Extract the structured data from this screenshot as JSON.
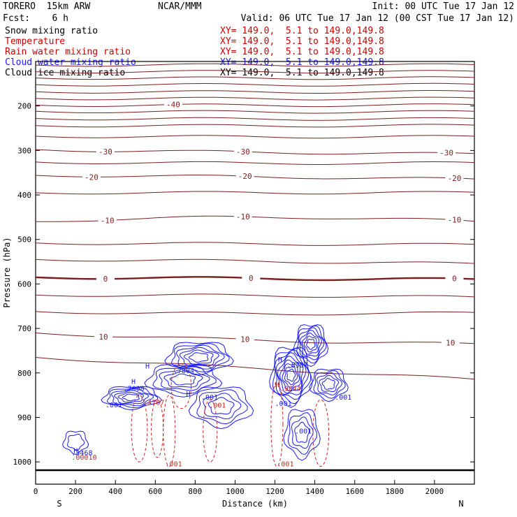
{
  "header": {
    "model": "TORERO  15km ARW",
    "center": "NCAR/MMM",
    "init": "Init: 00 UTC Tue 17 Jan 12",
    "fcst": "Fcst:    6 h",
    "valid": "Valid: 06 UTC Tue 17 Jan 12 (00 CST Tue 17 Jan 12)"
  },
  "fields": [
    {
      "label": "Snow mixing ratio",
      "xy": "XY= 149.0,  5.1 to 149.0,149.8",
      "color": "#000000",
      "xy_color": "#cc0000"
    },
    {
      "label": "Temperature",
      "xy": "XY= 149.0,  5.1 to 149.0,149.8",
      "color": "#cc0000",
      "xy_color": "#cc0000"
    },
    {
      "label": "Rain water mixing ratio",
      "xy": "XY= 149.0,  5.1 to 149.0,149.8",
      "color": "#cc0000",
      "xy_color": "#cc0000"
    },
    {
      "label": "Cloud water mixing ratio",
      "xy": "XY= 149.0,  5.1 to 149.0,149.8",
      "color": "#1a1aff",
      "xy_color": "#1a1aff"
    },
    {
      "label": "Cloud ice mixing ratio",
      "xy": "XY= 149.0,  5.1 to 149.0,149.8",
      "color": "#000000",
      "xy_color": "#000000"
    }
  ],
  "chart_data": {
    "type": "line",
    "xlabel": "Distance (km)",
    "ylabel": "Pressure (hPa)",
    "xlim": [
      0,
      2200
    ],
    "ylim": [
      1050,
      100
    ],
    "x_ticks": [
      0,
      200,
      400,
      600,
      800,
      1000,
      1200,
      1400,
      1600,
      1800,
      2000
    ],
    "y_ticks": [
      200,
      300,
      400,
      500,
      600,
      700,
      800,
      900,
      1000
    ],
    "left_end_label": "S",
    "right_end_label": "N",
    "colors": {
      "temperature": "#7a1f1f",
      "cloud": "#1a1aff",
      "rain": "#cc2222"
    },
    "temperature_contours": [
      {
        "p": [
          108,
          108,
          108
        ],
        "label": null
      },
      {
        "p": [
          123,
          123,
          123
        ],
        "label": null
      },
      {
        "p": [
          137,
          138,
          137
        ],
        "label": null
      },
      {
        "p": [
          152,
          153,
          152
        ],
        "label": null
      },
      {
        "p": [
          168,
          169,
          168
        ],
        "label": null
      },
      {
        "p": [
          183,
          184,
          183
        ],
        "label": null
      },
      {
        "p": [
          198,
          199,
          198
        ],
        "label": "-40",
        "label_x": 690
      },
      {
        "p": [
          212,
          214,
          213
        ],
        "label": null
      },
      {
        "p": [
          228,
          230,
          229
        ],
        "label": null
      },
      {
        "p": [
          244,
          245,
          244
        ],
        "label": null
      },
      {
        "p": [
          268,
          270,
          269
        ],
        "label": null
      },
      {
        "p": [
          298,
          305,
          308
        ],
        "label": "-30",
        "label_x": [
          350,
          1040,
          2060
        ]
      },
      {
        "p": [
          326,
          330,
          328
        ],
        "label": null
      },
      {
        "p": [
          356,
          358,
          365
        ],
        "label": "-20",
        "label_x": [
          280,
          1050,
          2100
        ]
      },
      {
        "p": [
          395,
          395,
          395
        ],
        "label": null
      },
      {
        "p": [
          460,
          440,
          460
        ],
        "label": "-10",
        "label_x": [
          360,
          1040,
          2100
        ]
      },
      {
        "p": [
          508,
          510,
          512
        ],
        "label": null
      },
      {
        "p": [
          545,
          548,
          555
        ],
        "label": null
      },
      {
        "p": [
          585,
          588,
          590
        ],
        "label": "0",
        "label_x": [
          350,
          1080,
          2100
        ],
        "bold": true
      },
      {
        "p": [
          625,
          625,
          630
        ],
        "label": null
      },
      {
        "p": [
          662,
          670,
          665
        ],
        "label": null
      },
      {
        "p": [
          710,
          730,
          735
        ],
        "label": "10",
        "label_x": [
          340,
          1050,
          2080
        ]
      },
      {
        "p": [
          765,
          790,
          815
        ],
        "label": null
      }
    ],
    "cloud_labels": [
      {
        "text": "H",
        "x": 550,
        "p": 790
      },
      {
        "text": ".7804",
        "x": 690,
        "p": 800
      },
      {
        "text": "H",
        "x": 755,
        "p": 852
      },
      {
        "text": "H",
        "x": 1215,
        "p": 775
      },
      {
        "text": ".8387",
        "x": 1260,
        "p": 788
      },
      {
        "text": "H",
        "x": 480,
        "p": 825
      },
      {
        "text": ".7008",
        "x": 440,
        "p": 840
      },
      {
        "text": ".001",
        "x": 350,
        "p": 877
      },
      {
        "text": ".001",
        "x": 830,
        "p": 860
      },
      {
        "text": ".001",
        "x": 1200,
        "p": 874
      },
      {
        "text": ".001",
        "x": 1300,
        "p": 936
      },
      {
        "text": ".001",
        "x": 1500,
        "p": 860
      },
      {
        "text": "H",
        "x": 190,
        "p": 980
      },
      {
        "text": ".3468",
        "x": 180,
        "p": 985
      }
    ],
    "rain_labels": [
      {
        "text": "H",
        "x": 1200,
        "p": 832
      },
      {
        "text": ".9844",
        "x": 1225,
        "p": 840
      },
      {
        "text": ".4767",
        "x": 540,
        "p": 872
      },
      {
        "text": ".001",
        "x": 1210,
        "p": 1010
      },
      {
        "text": ".001",
        "x": 870,
        "p": 878
      },
      {
        "text": ".00010",
        "x": 180,
        "p": 995
      },
      {
        "text": ".001",
        "x": 650,
        "p": 1010
      }
    ]
  }
}
